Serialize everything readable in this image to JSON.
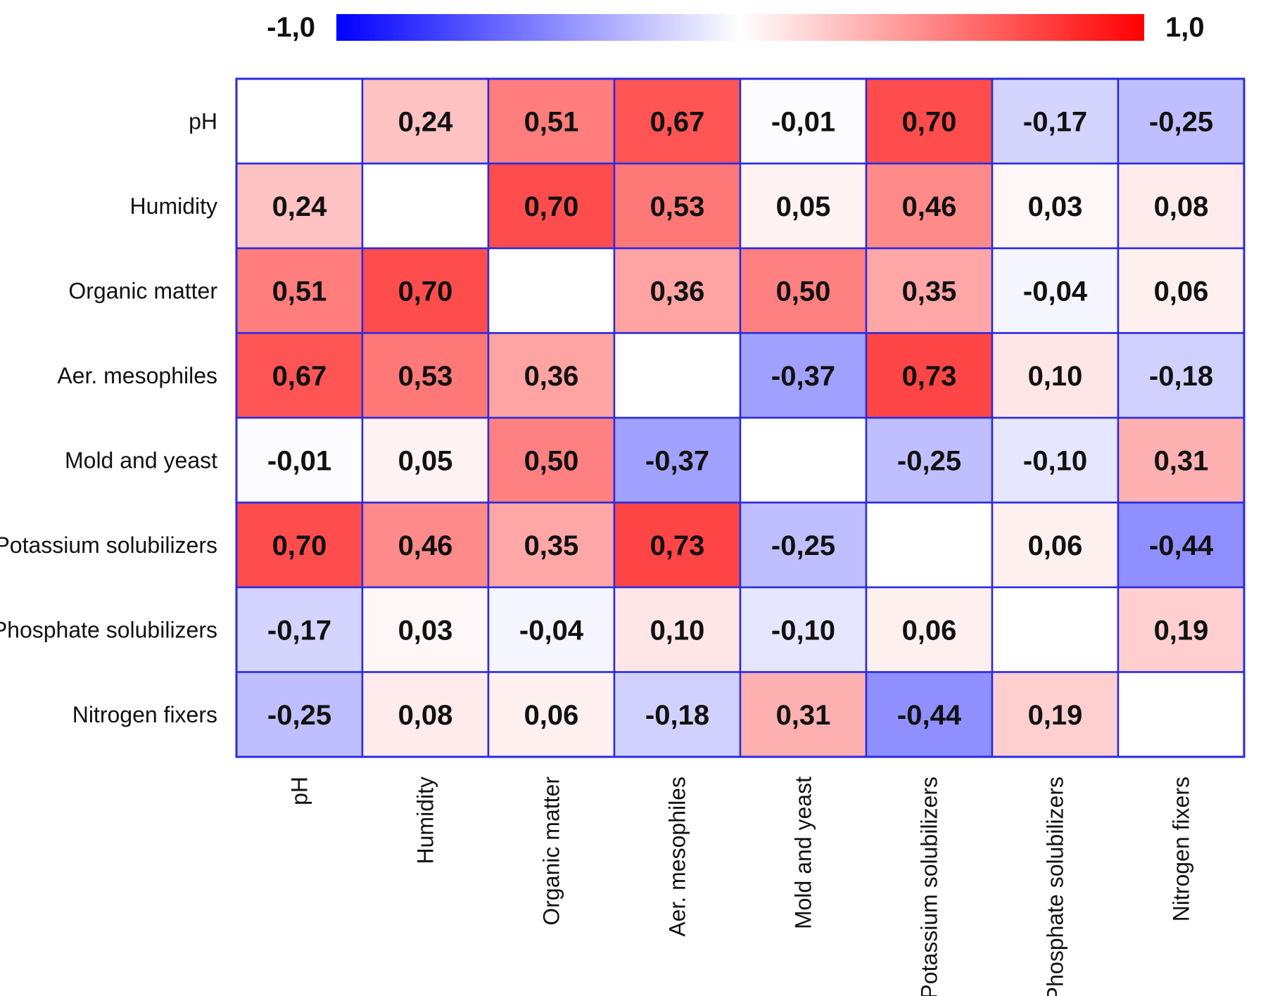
{
  "chart_data": {
    "type": "heatmap",
    "rows": [
      "pH",
      "Humidity",
      "Organic matter",
      "Aer. mesophiles",
      "Mold and yeast",
      "Potassium solubilizers",
      "Phosphate solubilizers",
      "Nitrogen fixers"
    ],
    "columns": [
      "pH",
      "Humidity",
      "Organic matter",
      "Aer. mesophiles",
      "Mold and yeast",
      "Potassium solubilizers",
      "Phosphate solubilizers",
      "Nitrogen fixers"
    ],
    "values": [
      [
        null,
        0.24,
        0.51,
        0.67,
        -0.01,
        0.7,
        -0.17,
        -0.25
      ],
      [
        0.24,
        null,
        0.7,
        0.53,
        0.05,
        0.46,
        0.03,
        0.08
      ],
      [
        0.51,
        0.7,
        null,
        0.36,
        0.5,
        0.35,
        -0.04,
        0.06
      ],
      [
        0.67,
        0.53,
        0.36,
        null,
        -0.37,
        0.73,
        0.1,
        -0.18
      ],
      [
        -0.01,
        0.05,
        0.5,
        -0.37,
        null,
        -0.25,
        -0.1,
        0.31
      ],
      [
        0.7,
        0.46,
        0.35,
        0.73,
        -0.25,
        null,
        0.06,
        -0.44
      ],
      [
        -0.17,
        0.03,
        -0.04,
        0.1,
        -0.1,
        0.06,
        null,
        0.19
      ],
      [
        -0.25,
        0.08,
        0.06,
        -0.18,
        0.31,
        -0.44,
        0.19,
        null
      ]
    ],
    "labels": [
      [
        "",
        "0,24",
        "0,51",
        "0,67",
        "-0,01",
        "0,70",
        "-0,17",
        "-0,25"
      ],
      [
        "0,24",
        "",
        "0,70",
        "0,53",
        "0,05",
        "0,46",
        "0,03",
        "0,08"
      ],
      [
        "0,51",
        "0,70",
        "",
        "0,36",
        "0,50",
        "0,35",
        "-0,04",
        "0,06"
      ],
      [
        "0,67",
        "0,53",
        "0,36",
        "",
        "-0,37",
        "0,73",
        "0,10",
        "-0,18"
      ],
      [
        "-0,01",
        "0,05",
        "0,50",
        "-0,37",
        "",
        "-0,25",
        "-0,10",
        "0,31"
      ],
      [
        "0,70",
        "0,46",
        "0,35",
        "0,73",
        "-0,25",
        "",
        "0,06",
        "-0,44"
      ],
      [
        "-0,17",
        "0,03",
        "-0,04",
        "0,10",
        "-0,10",
        "0,06",
        "",
        "0,19"
      ],
      [
        "-0,25",
        "0,08",
        "0,06",
        "-0,18",
        "0,31",
        "-0,44",
        "0,19",
        ""
      ]
    ],
    "color_scale": {
      "min": -1.0,
      "max": 1.0,
      "min_label": "-1,0",
      "max_label": "1,0",
      "low_color": "#0000ff",
      "mid_color": "#ffffff",
      "high_color": "#ff0000"
    },
    "grid_color": "#2a2ae0",
    "legend": "top"
  }
}
